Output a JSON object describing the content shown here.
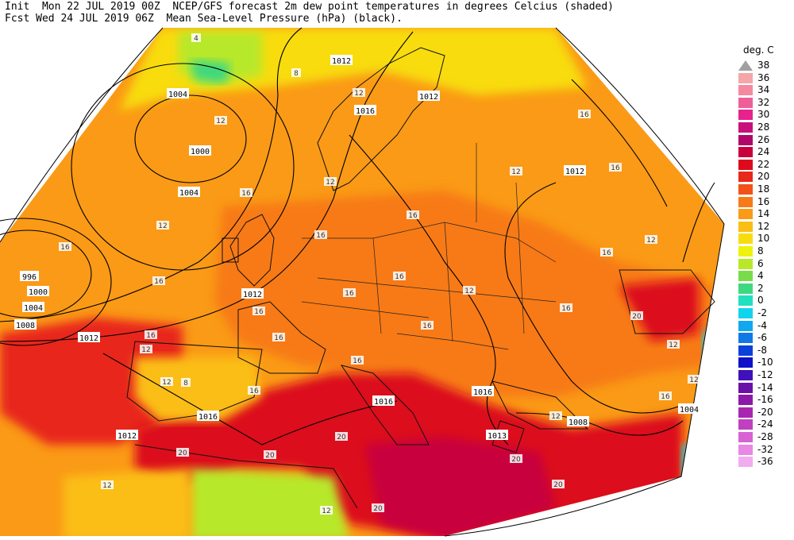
{
  "header": {
    "line1": "Init  Mon 22 JUL 2019 00Z  NCEP/GFS forecast 2m dew point temperatures in degrees Celcius (shaded)",
    "line2": "Fcst Wed 24 JUL 2019 06Z  Mean Sea-Level Pressure (hPa) (black)."
  },
  "legend": {
    "title": "deg. C",
    "items": [
      {
        "label": "38",
        "color": "#a0a0a0",
        "triangle": true
      },
      {
        "label": "36",
        "color": "#f4a6a8"
      },
      {
        "label": "34",
        "color": "#f589a0"
      },
      {
        "label": "32",
        "color": "#ee5f99"
      },
      {
        "label": "30",
        "color": "#e7228f"
      },
      {
        "label": "28",
        "color": "#c8107c"
      },
      {
        "label": "26",
        "color": "#b0086a"
      },
      {
        "label": "24",
        "color": "#c8003c"
      },
      {
        "label": "22",
        "color": "#dc0a1e"
      },
      {
        "label": "20",
        "color": "#e8281a"
      },
      {
        "label": "18",
        "color": "#f25218"
      },
      {
        "label": "16",
        "color": "#f77a18"
      },
      {
        "label": "14",
        "color": "#fa9a16"
      },
      {
        "label": "12",
        "color": "#fbbe14"
      },
      {
        "label": "10",
        "color": "#f8dc10"
      },
      {
        "label": "8",
        "color": "#eef20c"
      },
      {
        "label": "6",
        "color": "#b8e82a"
      },
      {
        "label": "4",
        "color": "#78dc4a"
      },
      {
        "label": "2",
        "color": "#3ed880"
      },
      {
        "label": "0",
        "color": "#20e0c0"
      },
      {
        "label": "-2",
        "color": "#10d4ee"
      },
      {
        "label": "-4",
        "color": "#10a8ee"
      },
      {
        "label": "-6",
        "color": "#1078e6"
      },
      {
        "label": "-8",
        "color": "#0c40da"
      },
      {
        "label": "-10",
        "color": "#1010c8"
      },
      {
        "label": "-12",
        "color": "#4010b8"
      },
      {
        "label": "-14",
        "color": "#6a10a8"
      },
      {
        "label": "-16",
        "color": "#8e18a8"
      },
      {
        "label": "-20",
        "color": "#a826b0"
      },
      {
        "label": "-24",
        "color": "#c040c0"
      },
      {
        "label": "-28",
        "color": "#d862d4"
      },
      {
        "label": "-32",
        "color": "#e888e4"
      },
      {
        "label": "-36",
        "color": "#f2acf0"
      }
    ]
  },
  "isobar_labels": [
    {
      "text": "1012"
    },
    {
      "text": "1004"
    },
    {
      "text": "1000"
    },
    {
      "text": "1004"
    },
    {
      "text": "996"
    },
    {
      "text": "1000"
    },
    {
      "text": "1004"
    },
    {
      "text": "1008"
    },
    {
      "text": "1012"
    },
    {
      "text": "1012"
    },
    {
      "text": "1012"
    },
    {
      "text": "1016"
    },
    {
      "text": "1012"
    },
    {
      "text": "1016"
    },
    {
      "text": "1016"
    },
    {
      "text": "1012"
    },
    {
      "text": "1016"
    },
    {
      "text": "1008"
    },
    {
      "text": "1004"
    },
    {
      "text": "1013"
    }
  ],
  "dewpoint_labels": [
    {
      "text": "4"
    },
    {
      "text": "8"
    },
    {
      "text": "12"
    },
    {
      "text": "12"
    },
    {
      "text": "16"
    },
    {
      "text": "12"
    },
    {
      "text": "16"
    },
    {
      "text": "16"
    },
    {
      "text": "16"
    },
    {
      "text": "12"
    },
    {
      "text": "16"
    },
    {
      "text": "12"
    },
    {
      "text": "16"
    },
    {
      "text": "16"
    },
    {
      "text": "16"
    },
    {
      "text": "16"
    },
    {
      "text": "12"
    },
    {
      "text": "16"
    },
    {
      "text": "20"
    },
    {
      "text": "12"
    },
    {
      "text": "16"
    },
    {
      "text": "12"
    },
    {
      "text": "16"
    },
    {
      "text": "12"
    },
    {
      "text": "20"
    },
    {
      "text": "20"
    },
    {
      "text": "16"
    },
    {
      "text": "20"
    },
    {
      "text": "20"
    },
    {
      "text": "20"
    },
    {
      "text": "12"
    },
    {
      "text": "12"
    },
    {
      "text": "20"
    },
    {
      "text": "16"
    },
    {
      "text": "12"
    },
    {
      "text": "16"
    },
    {
      "text": "12"
    },
    {
      "text": "8"
    },
    {
      "text": "12"
    },
    {
      "text": "16"
    },
    {
      "text": "16"
    },
    {
      "text": "16"
    }
  ]
}
